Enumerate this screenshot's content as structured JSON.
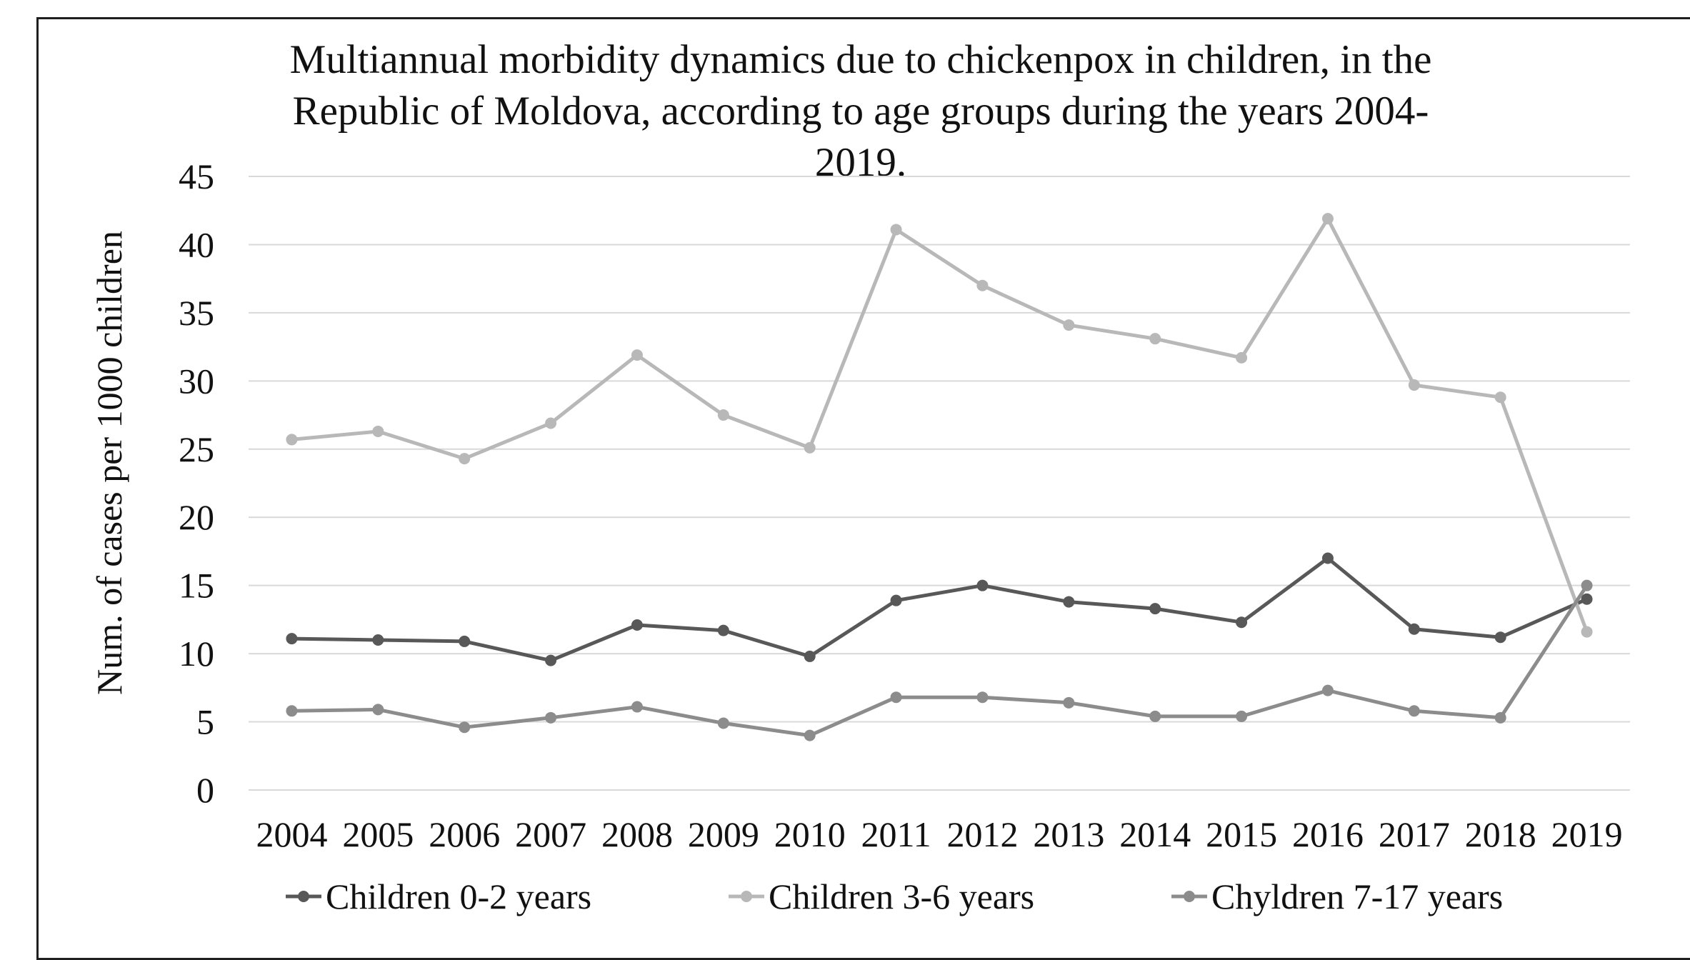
{
  "chart_data": {
    "type": "line",
    "title_lines": [
      "Multiannual morbidity dynamics due to chickenpox in children, in the",
      "Republic of Moldova, according to age groups during the years 2004-",
      "2019."
    ],
    "xlabel": "",
    "ylabel": "Num. of cases per 1000 children",
    "ylim": [
      0,
      45
    ],
    "y_ticks": [
      0,
      5,
      10,
      15,
      20,
      25,
      30,
      35,
      40,
      45
    ],
    "grid": true,
    "legend_position": "bottom",
    "categories": [
      "2004",
      "2005",
      "2006",
      "2007",
      "2008",
      "2009",
      "2010",
      "2011",
      "2012",
      "2013",
      "2014",
      "2015",
      "2016",
      "2017",
      "2018",
      "2019"
    ],
    "series": [
      {
        "name": "Children 0-2 years",
        "color": "#585858",
        "values": [
          11.1,
          11.0,
          10.9,
          9.5,
          12.1,
          11.7,
          9.8,
          13.9,
          15.0,
          13.8,
          13.3,
          12.3,
          17.0,
          11.8,
          11.2,
          14.0
        ]
      },
      {
        "name": "Children 3-6 years",
        "color": "#b8b8b8",
        "values": [
          25.7,
          26.3,
          24.3,
          26.9,
          31.9,
          27.5,
          25.1,
          41.1,
          37.0,
          34.1,
          33.1,
          31.7,
          41.9,
          29.7,
          28.8,
          11.6
        ]
      },
      {
        "name": "Chyldren 7-17 years",
        "color": "#8c8c8c",
        "values": [
          5.8,
          5.9,
          4.6,
          5.3,
          6.1,
          4.9,
          4.0,
          6.8,
          6.8,
          6.4,
          5.4,
          5.4,
          7.3,
          5.8,
          5.3,
          15.0
        ]
      }
    ],
    "gridline_color": "#d9d9d9",
    "axis_line_color": "#d9d9d9"
  }
}
